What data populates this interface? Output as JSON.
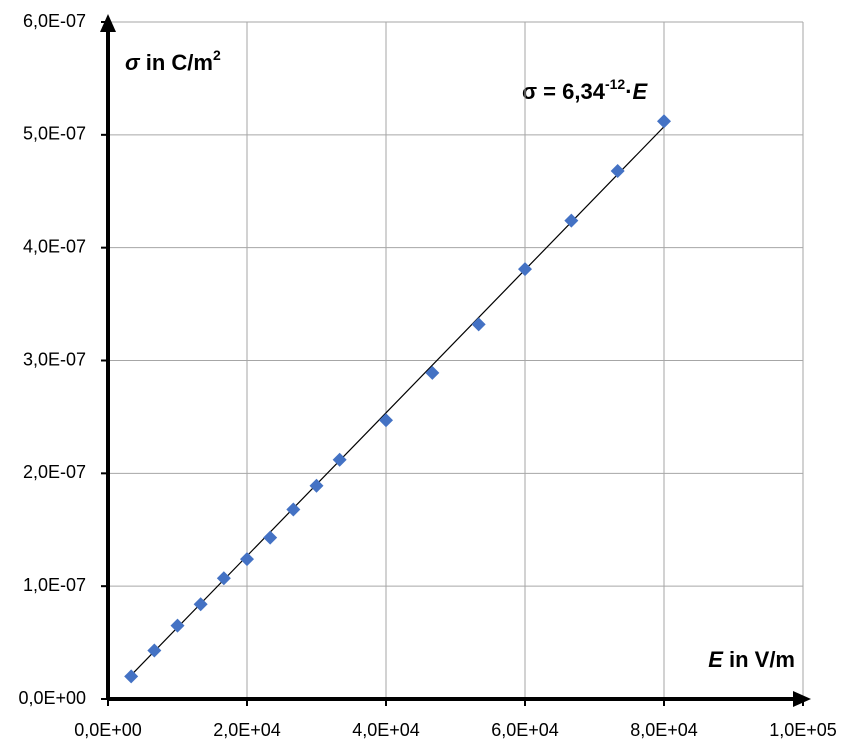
{
  "chart_data": {
    "type": "scatter",
    "x": [
      3333,
      6667,
      10000,
      13333,
      16667,
      20000,
      23333,
      26667,
      30000,
      33333,
      40000,
      46667,
      53333,
      60000,
      66667,
      73333,
      80000
    ],
    "series": [
      {
        "color": "#4472c4",
        "values": [
          2e-08,
          4.3e-08,
          6.5e-08,
          8.4e-08,
          1.07e-07,
          1.24e-07,
          1.43e-07,
          1.68e-07,
          1.89e-07,
          2.12e-07,
          2.47e-07,
          2.89e-07,
          3.32e-07,
          3.81e-07,
          4.24e-07,
          4.68e-07,
          5.12e-07
        ]
      }
    ],
    "trendline": {
      "slope": 6.34e-12,
      "color": "#000000"
    },
    "annotation": [
      "σ = 6,34",
      "-12",
      "·",
      "E"
    ],
    "y_label": [
      "σ",
      " in C/m",
      "2"
    ],
    "x_label": [
      "E",
      " in V/m"
    ],
    "xlim": [
      0,
      100000
    ],
    "ylim": [
      0,
      6e-07
    ],
    "xticks": [
      {
        "value": 0,
        "label": "0,0E+00"
      },
      {
        "value": 20000,
        "label": "2,0E+04"
      },
      {
        "value": 40000,
        "label": "4,0E+04"
      },
      {
        "value": 60000,
        "label": "6,0E+04"
      },
      {
        "value": 80000,
        "label": "8,0E+04"
      },
      {
        "value": 100000,
        "label": "1,0E+05"
      }
    ],
    "yticks": [
      {
        "value": 0,
        "label": "0,0E+00"
      },
      {
        "value": 1e-07,
        "label": "1,0E-07"
      },
      {
        "value": 2e-07,
        "label": "2,0E-07"
      },
      {
        "value": 3e-07,
        "label": "3,0E-07"
      },
      {
        "value": 4e-07,
        "label": "4,0E-07"
      },
      {
        "value": 5e-07,
        "label": "5,0E-07"
      },
      {
        "value": 6e-07,
        "label": "6,0E-07"
      }
    ],
    "grid": true
  }
}
